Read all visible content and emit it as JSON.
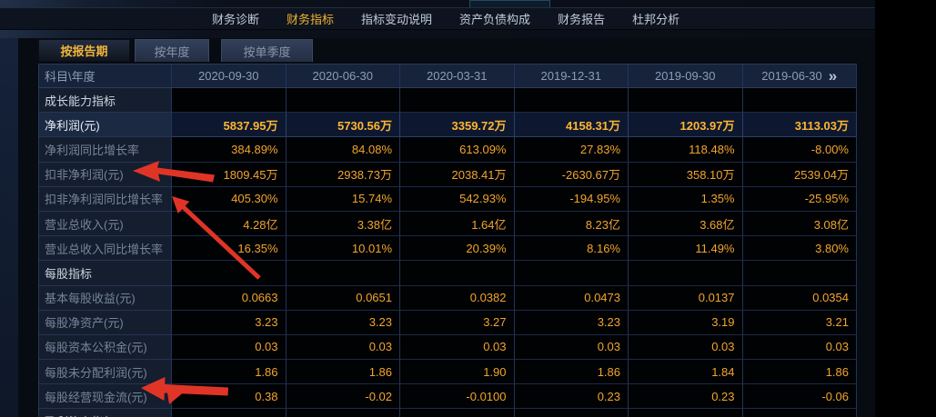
{
  "nav": {
    "items": [
      {
        "label": "财务诊断",
        "active": false
      },
      {
        "label": "财务指标",
        "active": true
      },
      {
        "label": "指标变动说明",
        "active": false
      },
      {
        "label": "资产负债构成",
        "active": false
      },
      {
        "label": "财务报告",
        "active": false
      },
      {
        "label": "杜邦分析",
        "active": false
      }
    ]
  },
  "period_tabs": [
    {
      "name": "tab-by-report-period",
      "label": "按报告期",
      "active": true
    },
    {
      "name": "tab-by-year",
      "label": "按年度",
      "active": false
    },
    {
      "name": "tab-by-single-quarter",
      "label": "按单季度",
      "active": false
    }
  ],
  "table": {
    "corner_header": "科目\\年度",
    "columns": [
      "2020-09-30",
      "2020-06-30",
      "2020-03-31",
      "2019-12-31",
      "2019-09-30",
      "2019-06-30"
    ],
    "more_icon": "»",
    "rows": [
      {
        "label": "成长能力指标",
        "type": "section",
        "values": [
          "",
          "",
          "",
          "",
          "",
          ""
        ]
      },
      {
        "label": "净利润(元)",
        "type": "highlight",
        "values": [
          "5837.95万",
          "5730.56万",
          "3359.72万",
          "4158.31万",
          "1203.97万",
          "3113.03万"
        ]
      },
      {
        "label": "净利润同比增长率",
        "type": "data",
        "values": [
          "384.89%",
          "84.08%",
          "613.09%",
          "27.83%",
          "118.48%",
          "-8.00%"
        ]
      },
      {
        "label": "扣非净利润(元)",
        "type": "data",
        "values": [
          "1809.45万",
          "2938.73万",
          "2038.41万",
          "-2630.67万",
          "358.10万",
          "2539.04万"
        ]
      },
      {
        "label": "扣非净利润同比增长率",
        "type": "data",
        "values": [
          "405.30%",
          "15.74%",
          "542.93%",
          "-194.95%",
          "1.35%",
          "-25.95%"
        ]
      },
      {
        "label": "营业总收入(元)",
        "type": "data",
        "values": [
          "4.28亿",
          "3.38亿",
          "1.64亿",
          "8.23亿",
          "3.68亿",
          "3.08亿"
        ]
      },
      {
        "label": "营业总收入同比增长率",
        "type": "data",
        "values": [
          "16.35%",
          "10.01%",
          "20.39%",
          "8.16%",
          "11.49%",
          "3.80%"
        ]
      },
      {
        "label": "每股指标",
        "type": "section",
        "values": [
          "",
          "",
          "",
          "",
          "",
          ""
        ]
      },
      {
        "label": "基本每股收益(元)",
        "type": "data",
        "values": [
          "0.0663",
          "0.0651",
          "0.0382",
          "0.0473",
          "0.0137",
          "0.0354"
        ]
      },
      {
        "label": "每股净资产(元)",
        "type": "data",
        "values": [
          "3.23",
          "3.23",
          "3.27",
          "3.23",
          "3.19",
          "3.21"
        ]
      },
      {
        "label": "每股资本公积金(元)",
        "type": "data",
        "values": [
          "0.03",
          "0.03",
          "0.03",
          "0.03",
          "0.03",
          "0.03"
        ]
      },
      {
        "label": "每股未分配利润(元)",
        "type": "data",
        "values": [
          "1.86",
          "1.86",
          "1.90",
          "1.86",
          "1.84",
          "1.86"
        ]
      },
      {
        "label": "每股经营现金流(元)",
        "type": "data",
        "values": [
          "0.38",
          "-0.02",
          "-0.0100",
          "0.23",
          "0.23",
          "-0.06"
        ]
      },
      {
        "label": "盈利能力指标",
        "type": "section",
        "values": [
          "",
          "",
          "",
          "",
          "",
          ""
        ]
      }
    ]
  },
  "annotations": {
    "arrow_color": "#e03427",
    "arrows": [
      {
        "target": "扣非净利润(元)"
      },
      {
        "target": "扣非净利润同比增长率"
      },
      {
        "target": "每股经营现金流(元)"
      }
    ]
  },
  "colors": {
    "accent_yellow": "#f0b42f",
    "value_orange": "#f2a52c",
    "highlight_row_bg": "#0d1830",
    "arrow_red": "#e03427"
  }
}
